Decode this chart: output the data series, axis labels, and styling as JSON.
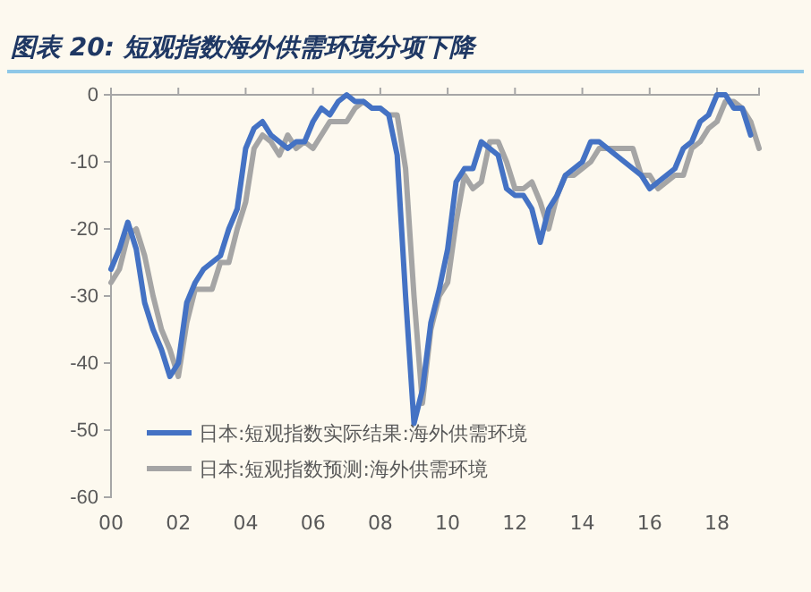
{
  "chart_data": {
    "type": "line",
    "title": "图表 20: 短观指数海外供需环境分项下降",
    "xlim": [
      2000,
      2019.25
    ],
    "xticks": [
      {
        "value": 2000,
        "label": "00"
      },
      {
        "value": 2002,
        "label": "02"
      },
      {
        "value": 2004,
        "label": "04"
      },
      {
        "value": 2006,
        "label": "06"
      },
      {
        "value": 2008,
        "label": "08"
      },
      {
        "value": 2010,
        "label": "10"
      },
      {
        "value": 2012,
        "label": "12"
      },
      {
        "value": 2014,
        "label": "14"
      },
      {
        "value": 2016,
        "label": "16"
      },
      {
        "value": 2018,
        "label": "18"
      }
    ],
    "ylim": [
      -60,
      0
    ],
    "yticks": [
      -60,
      -50,
      -40,
      -30,
      -20,
      -10,
      0
    ],
    "grid": false,
    "legend": "bottom left",
    "line_style": "solid",
    "marker": "none",
    "series": [
      {
        "name": "日本:短观指数实际结果:海外供需环境",
        "color": "#4472c4",
        "x": [
          2000,
          2000.25,
          2000.5,
          2000.75,
          2001,
          2001.25,
          2001.5,
          2001.75,
          2002,
          2002.25,
          2002.5,
          2002.75,
          2003,
          2003.25,
          2003.5,
          2003.75,
          2004,
          2004.25,
          2004.5,
          2004.75,
          2005,
          2005.25,
          2005.5,
          2005.75,
          2006,
          2006.25,
          2006.5,
          2006.75,
          2007,
          2007.25,
          2007.5,
          2007.75,
          2008,
          2008.25,
          2008.5,
          2008.75,
          2009,
          2009.25,
          2009.5,
          2009.75,
          2010,
          2010.25,
          2010.5,
          2010.75,
          2011,
          2011.25,
          2011.5,
          2011.75,
          2012,
          2012.25,
          2012.5,
          2012.75,
          2013,
          2013.25,
          2013.5,
          2013.75,
          2014,
          2014.25,
          2014.5,
          2014.75,
          2015,
          2015.25,
          2015.5,
          2015.75,
          2016,
          2016.25,
          2016.5,
          2016.75,
          2017,
          2017.25,
          2017.5,
          2017.75,
          2018,
          2018.25,
          2018.5,
          2018.75,
          2019
        ],
        "values": [
          -26,
          -23,
          -19,
          -23,
          -31,
          -35,
          -38,
          -42,
          -40,
          -31,
          -28,
          -26,
          -25,
          -24,
          -20,
          -17,
          -8,
          -5,
          -4,
          -6,
          -7,
          -8,
          -7,
          -7,
          -4,
          -2,
          -3,
          -1,
          0,
          -1,
          -1,
          -2,
          -2,
          -3,
          -9,
          -30,
          -49,
          -44,
          -34,
          -29,
          -23,
          -13,
          -11,
          -11,
          -7,
          -8,
          -9,
          -14,
          -15,
          -15,
          -17,
          -22,
          -17,
          -15,
          -12,
          -11,
          -10,
          -7,
          -7,
          -8,
          -9,
          -10,
          -11,
          -12,
          -14,
          -13,
          -12,
          -11,
          -8,
          -7,
          -4,
          -3,
          0,
          0,
          -2,
          -2,
          -6
        ]
      },
      {
        "name": "日本:短观指数预测:海外供需环境",
        "color": "#a5a5a5",
        "x": [
          2000,
          2000.25,
          2000.5,
          2000.75,
          2001,
          2001.25,
          2001.5,
          2001.75,
          2002,
          2002.25,
          2002.5,
          2002.75,
          2003,
          2003.25,
          2003.5,
          2003.75,
          2004,
          2004.25,
          2004.5,
          2004.75,
          2005,
          2005.25,
          2005.5,
          2005.75,
          2006,
          2006.25,
          2006.5,
          2006.75,
          2007,
          2007.25,
          2007.5,
          2007.75,
          2008,
          2008.25,
          2008.5,
          2008.75,
          2009,
          2009.25,
          2009.5,
          2009.75,
          2010,
          2010.25,
          2010.5,
          2010.75,
          2011,
          2011.25,
          2011.5,
          2011.75,
          2012,
          2012.25,
          2012.5,
          2012.75,
          2013,
          2013.25,
          2013.5,
          2013.75,
          2014,
          2014.25,
          2014.5,
          2014.75,
          2015,
          2015.25,
          2015.5,
          2015.75,
          2016,
          2016.25,
          2016.5,
          2016.75,
          2017,
          2017.25,
          2017.5,
          2017.75,
          2018,
          2018.25,
          2018.5,
          2018.75,
          2019,
          2019.25
        ],
        "values": [
          -28,
          -26,
          -21,
          -20,
          -24,
          -30,
          -35,
          -38,
          -42,
          -34,
          -29,
          -29,
          -29,
          -25,
          -25,
          -20,
          -16,
          -8,
          -6,
          -7,
          -9,
          -6,
          -8,
          -7,
          -8,
          -6,
          -4,
          -4,
          -4,
          -2,
          -1,
          -2,
          -2,
          -3,
          -3,
          -11,
          -30,
          -46,
          -35,
          -30,
          -28,
          -19,
          -12,
          -14,
          -13,
          -7,
          -7,
          -10,
          -14,
          -14,
          -13,
          -16,
          -20,
          -15,
          -12,
          -12,
          -11,
          -10,
          -8,
          -8,
          -8,
          -8,
          -8,
          -12,
          -12,
          -14,
          -13,
          -12,
          -12,
          -8,
          -7,
          -5,
          -4,
          -1,
          -1,
          -2,
          -4,
          -8
        ]
      }
    ]
  }
}
